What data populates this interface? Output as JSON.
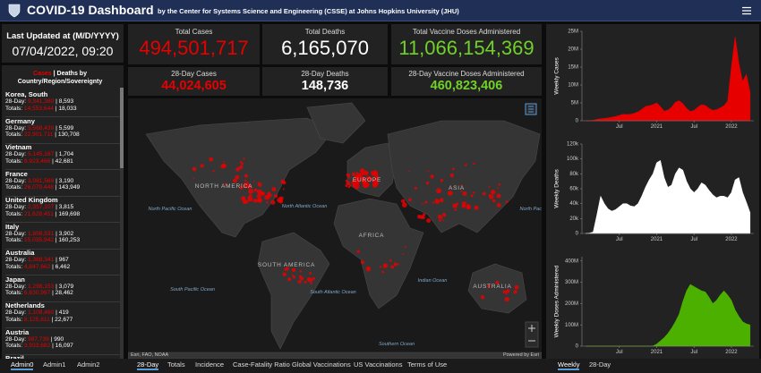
{
  "header": {
    "title": "COVID-19 Dashboard",
    "subtitle": "by the Center for Systems Science and Engineering (CSSE) at Johns Hopkins University (JHU)"
  },
  "last_updated": {
    "label": "Last Updated at (M/D/YYYY)",
    "value": "07/04/2022, 09:20"
  },
  "country_list": {
    "header_cases": "Cases",
    "header_rest": "| Deaths by Country/Region/Sovereignty",
    "day28_label": "28-Day:",
    "totals_label": "Totals:",
    "separator": "|",
    "items": [
      {
        "name": "Korea, South",
        "day28_cases": "9,341,380",
        "day28_deaths": "8,593",
        "total_cases": "14,553,644",
        "total_deaths": "18,033"
      },
      {
        "name": "Germany",
        "day28_cases": "5,568,439",
        "day28_deaths": "5,599",
        "total_cases": "22,901,711",
        "total_deaths": "130,708"
      },
      {
        "name": "Vietnam",
        "day28_cases": "5,145,167",
        "day28_deaths": "1,704",
        "total_cases": "9,923,466",
        "total_deaths": "42,681"
      },
      {
        "name": "France",
        "day28_cases": "3,081,569",
        "day28_deaths": "3,190",
        "total_cases": "26,079,448",
        "total_deaths": "143,949"
      },
      {
        "name": "United Kingdom",
        "day28_cases": "2,357,107",
        "day28_deaths": "3,815",
        "total_cases": "21,628,451",
        "total_deaths": "169,698"
      },
      {
        "name": "Italy",
        "day28_cases": "1,856,531",
        "day28_deaths": "3,902",
        "total_cases": "15,035,942",
        "total_deaths": "160,253"
      },
      {
        "name": "Australia",
        "day28_cases": "1,388,341",
        "day28_deaths": "967",
        "total_cases": "4,847,662",
        "total_deaths": "6,462"
      },
      {
        "name": "Japan",
        "day28_cases": "1,298,153",
        "day28_deaths": "3,079",
        "total_cases": "6,630,997",
        "total_deaths": "28,462"
      },
      {
        "name": "Netherlands",
        "day28_cases": "1,108,460",
        "day28_deaths": "419",
        "total_cases": "8,125,811",
        "total_deaths": "22,677"
      },
      {
        "name": "Austria",
        "day28_cases": "987,739",
        "day28_deaths": "990",
        "total_cases": "3,933,682",
        "total_deaths": "16,097"
      },
      {
        "name": "Brazil"
      }
    ]
  },
  "totals": [
    {
      "label": "Total Cases",
      "value": "494,501,717",
      "color": "#e60000"
    },
    {
      "label": "Total Deaths",
      "value": "6,165,070",
      "color": "#ffffff"
    },
    {
      "label": "Total Vaccine Doses Administered",
      "value": "11,066,154,369",
      "color": "#70d12a"
    }
  ],
  "day28": [
    {
      "label": "28-Day Cases",
      "value": "44,024,605",
      "color": "#e60000"
    },
    {
      "label": "28-Day Deaths",
      "value": "148,736",
      "color": "#ffffff"
    },
    {
      "label": "28-Day Vaccine Doses Administered",
      "value": "460,823,406",
      "color": "#70d12a"
    }
  ],
  "map": {
    "continents": [
      "NORTH AMERICA",
      "SOUTH AMERICA",
      "EUROPE",
      "AFRICA",
      "ASIA",
      "AUSTRALIA"
    ],
    "oceans": [
      "North Pacific Ocean",
      "North Atlantic Ocean",
      "South Pacific Ocean",
      "South Atlantic Ocean",
      "Indian Ocean",
      "Southern Ocean",
      "North Pacific Ocean"
    ],
    "attribution": "Esri, FAO, NOAA",
    "powered_by": "Powered by Esri"
  },
  "tabs": {
    "admin": [
      "Admin0",
      "Admin1",
      "Admin2"
    ],
    "views": [
      "28-Day",
      "Totals",
      "Incidence",
      "Case-Fatality Ratio",
      "Global Vaccinations",
      "US Vaccinations",
      "Terms of Use"
    ],
    "charts": [
      "Weekly",
      "28-Day"
    ]
  },
  "weekly_charts": {
    "xlim": [
      2020.0,
      2022.3
    ],
    "xticks": [
      {
        "value": 2020.5,
        "label": "Jul"
      },
      {
        "value": 2021,
        "label": "2021"
      },
      {
        "value": 2021.5,
        "label": "Jul"
      },
      {
        "value": 2022,
        "label": "2022"
      }
    ],
    "x": [
      2020.05,
      2020.1,
      2020.15,
      2020.2,
      2020.25,
      2020.3,
      2020.35,
      2020.4,
      2020.45,
      2020.5,
      2020.55,
      2020.6,
      2020.65,
      2020.7,
      2020.75,
      2020.8,
      2020.85,
      2020.9,
      2020.95,
      2021.0,
      2021.05,
      2021.1,
      2021.15,
      2021.2,
      2021.25,
      2021.3,
      2021.35,
      2021.4,
      2021.45,
      2021.5,
      2021.55,
      2021.6,
      2021.65,
      2021.7,
      2021.75,
      2021.8,
      2021.85,
      2021.9,
      2021.95,
      2022.0,
      2022.05,
      2022.1,
      2022.15,
      2022.2,
      2022.25
    ],
    "charts": [
      {
        "type": "area",
        "y_label": "Weekly Cases",
        "color": "#e60000",
        "ylim": [
          0,
          25000000
        ],
        "yticks": [
          0,
          {
            "value": 5000000,
            "label": "5M"
          },
          {
            "value": 10000000,
            "label": "10M"
          },
          {
            "value": 15000000,
            "label": "15M"
          },
          {
            "value": 20000000,
            "label": "20M"
          },
          {
            "value": 25000000,
            "label": "25M"
          }
        ],
        "values": [
          0,
          20000,
          100000,
          400000,
          550000,
          650000,
          800000,
          1000000,
          1200000,
          1500000,
          1800000,
          1750000,
          1800000,
          2100000,
          2500000,
          3200000,
          4000000,
          4200000,
          4500000,
          5000000,
          4000000,
          2700000,
          3000000,
          3800000,
          5200000,
          5600000,
          4800000,
          3500000,
          2600000,
          2900000,
          3800000,
          4500000,
          4300000,
          3500000,
          2900000,
          3100000,
          3600000,
          4200000,
          5500000,
          15000000,
          23500000,
          16000000,
          11000000,
          13000000,
          8000000
        ]
      },
      {
        "type": "area",
        "y_label": "Weekly Deaths",
        "color": "#ffffff",
        "ylim": [
          0,
          120000
        ],
        "yticks": [
          0,
          {
            "value": 20000,
            "label": "20k"
          },
          {
            "value": 40000,
            "label": "40k"
          },
          {
            "value": 60000,
            "label": "60k"
          },
          {
            "value": 80000,
            "label": "80k"
          },
          {
            "value": 100000,
            "label": "100k"
          },
          {
            "value": 120000,
            "label": "120k"
          }
        ],
        "values": [
          0,
          500,
          2000,
          25000,
          50000,
          40000,
          33000,
          30000,
          32000,
          36000,
          40000,
          40000,
          37000,
          36000,
          40000,
          50000,
          62000,
          72000,
          80000,
          95000,
          98000,
          75000,
          62000,
          65000,
          80000,
          88000,
          85000,
          70000,
          60000,
          55000,
          60000,
          68000,
          65000,
          58000,
          52000,
          48000,
          50000,
          50000,
          48000,
          55000,
          72000,
          75000,
          55000,
          42000,
          28000
        ]
      },
      {
        "type": "area",
        "y_label": "Weekly Doses Administered",
        "color": "#4cb000",
        "ylim": [
          0,
          420000000
        ],
        "yticks": [
          0,
          {
            "value": 100000000,
            "label": "100M"
          },
          {
            "value": 200000000,
            "label": "200M"
          },
          {
            "value": 300000000,
            "label": "300M"
          },
          {
            "value": 400000000,
            "label": "400M"
          }
        ],
        "values": [
          0,
          0,
          0,
          0,
          0,
          0,
          0,
          0,
          0,
          0,
          0,
          0,
          0,
          0,
          0,
          0,
          0,
          0,
          1000000,
          10000000,
          25000000,
          40000000,
          60000000,
          85000000,
          115000000,
          150000000,
          210000000,
          260000000,
          290000000,
          280000000,
          270000000,
          260000000,
          255000000,
          230000000,
          200000000,
          215000000,
          240000000,
          260000000,
          240000000,
          215000000,
          170000000,
          140000000,
          115000000,
          105000000,
          100000000
        ]
      }
    ]
  }
}
